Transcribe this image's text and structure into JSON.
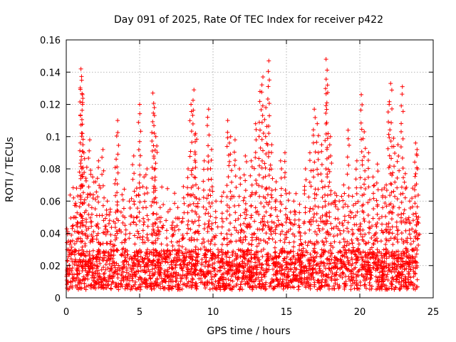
{
  "chart_data": {
    "type": "scatter",
    "title": "Day 091 of 2025, Rate Of TEC Index for receiver p422",
    "xlabel": "GPS time / hours",
    "ylabel": "ROTI / TECUs",
    "xlim": [
      0,
      25
    ],
    "ylim": [
      0,
      0.16
    ],
    "xticks": [
      0,
      5,
      10,
      15,
      20,
      25
    ],
    "xtick_labels": [
      "0",
      "5",
      "10",
      "15",
      "20",
      "25"
    ],
    "yticks": [
      0,
      0.02,
      0.04,
      0.06,
      0.08,
      0.1,
      0.12,
      0.14,
      0.16
    ],
    "ytick_labels": [
      "0",
      "0.02",
      "0.04",
      "0.06",
      "0.08",
      "0.1",
      "0.12",
      "0.14",
      "0.16"
    ],
    "grid": true,
    "marker": "+",
    "marker_color": "#ff0000",
    "x_coverage": [
      0,
      24
    ],
    "baseline_range": [
      0.005,
      0.03
    ],
    "series": [
      {
        "name": "p422",
        "points": [
          [
            0.1,
            0.041
          ],
          [
            0.3,
            0.035
          ],
          [
            0.5,
            0.062
          ],
          [
            0.7,
            0.068
          ],
          [
            0.9,
            0.078
          ],
          [
            1.0,
            0.142
          ],
          [
            1.05,
            0.135
          ],
          [
            1.1,
            0.126
          ],
          [
            1.2,
            0.09
          ],
          [
            1.4,
            0.081
          ],
          [
            1.6,
            0.098
          ],
          [
            1.8,
            0.075
          ],
          [
            2.0,
            0.072
          ],
          [
            2.2,
            0.085
          ],
          [
            2.5,
            0.092
          ],
          [
            2.8,
            0.06
          ],
          [
            3.0,
            0.055
          ],
          [
            3.4,
            0.086
          ],
          [
            3.5,
            0.11
          ],
          [
            3.8,
            0.064
          ],
          [
            4.0,
            0.045
          ],
          [
            4.3,
            0.06
          ],
          [
            4.6,
            0.088
          ],
          [
            4.8,
            0.068
          ],
          [
            5.0,
            0.12
          ],
          [
            5.3,
            0.075
          ],
          [
            5.5,
            0.08
          ],
          [
            5.9,
            0.127
          ],
          [
            6.0,
            0.118
          ],
          [
            6.1,
            0.1
          ],
          [
            6.4,
            0.056
          ],
          [
            6.8,
            0.048
          ],
          [
            7.2,
            0.045
          ],
          [
            7.6,
            0.056
          ],
          [
            8.0,
            0.062
          ],
          [
            8.3,
            0.08
          ],
          [
            8.5,
            0.12
          ],
          [
            8.7,
            0.129
          ],
          [
            8.8,
            0.102
          ],
          [
            9.0,
            0.068
          ],
          [
            9.4,
            0.085
          ],
          [
            9.7,
            0.117
          ],
          [
            9.9,
            0.092
          ],
          [
            10.2,
            0.06
          ],
          [
            10.6,
            0.063
          ],
          [
            11.0,
            0.11
          ],
          [
            11.2,
            0.1
          ],
          [
            11.5,
            0.098
          ],
          [
            11.8,
            0.08
          ],
          [
            12.2,
            0.088
          ],
          [
            12.6,
            0.085
          ],
          [
            12.9,
            0.108
          ],
          [
            13.2,
            0.128
          ],
          [
            13.4,
            0.137
          ],
          [
            13.6,
            0.118
          ],
          [
            13.8,
            0.147
          ],
          [
            14.0,
            0.095
          ],
          [
            14.3,
            0.072
          ],
          [
            14.6,
            0.085
          ],
          [
            14.9,
            0.09
          ],
          [
            15.2,
            0.065
          ],
          [
            15.5,
            0.06
          ],
          [
            15.9,
            0.058
          ],
          [
            16.3,
            0.08
          ],
          [
            16.6,
            0.09
          ],
          [
            16.9,
            0.117
          ],
          [
            17.1,
            0.108
          ],
          [
            17.4,
            0.095
          ],
          [
            17.7,
            0.148
          ],
          [
            17.8,
            0.132
          ],
          [
            18.0,
            0.1
          ],
          [
            18.3,
            0.065
          ],
          [
            18.6,
            0.06
          ],
          [
            18.9,
            0.07
          ],
          [
            19.2,
            0.104
          ],
          [
            19.5,
            0.063
          ],
          [
            19.8,
            0.085
          ],
          [
            20.1,
            0.126
          ],
          [
            20.3,
            0.103
          ],
          [
            20.6,
            0.09
          ],
          [
            20.9,
            0.075
          ],
          [
            21.2,
            0.083
          ],
          [
            21.5,
            0.067
          ],
          [
            21.8,
            0.07
          ],
          [
            22.0,
            0.12
          ],
          [
            22.1,
            0.133
          ],
          [
            22.3,
            0.099
          ],
          [
            22.6,
            0.095
          ],
          [
            22.9,
            0.131
          ],
          [
            23.1,
            0.077
          ],
          [
            23.4,
            0.06
          ],
          [
            23.6,
            0.068
          ],
          [
            23.8,
            0.096
          ],
          [
            23.9,
            0.092
          ],
          [
            24.0,
            0.05
          ]
        ]
      }
    ]
  }
}
